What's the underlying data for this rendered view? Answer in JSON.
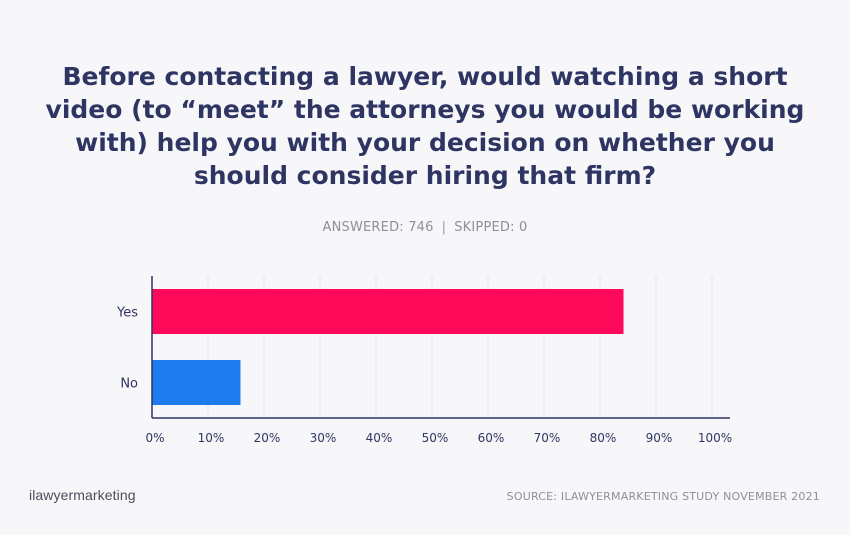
{
  "header": {
    "title": "Before contacting a lawyer, would watching a short video (to “meet” the attorneys you would be working with) help you with your decision on whether you should consider hiring that firm?",
    "answered": "ANSWERED: 746",
    "separator": "|",
    "skipped": "SKIPPED: 0"
  },
  "footer": {
    "brand": "ilawyermarketing",
    "source": "SOURCE: ILAWYERMARKETING STUDY NOVEMBER 2021"
  },
  "chart_data": {
    "type": "bar",
    "orientation": "horizontal",
    "categories": [
      "Yes",
      "No"
    ],
    "values": [
      84.2,
      15.8
    ],
    "colors": [
      "#ff0a5a",
      "#1e7bf0"
    ],
    "xlim": [
      0,
      100
    ],
    "xticks": [
      "0%",
      "10%",
      "20%",
      "30%",
      "40%",
      "50%",
      "60%",
      "70%",
      "80%",
      "90%",
      "100%"
    ],
    "grid": true
  }
}
